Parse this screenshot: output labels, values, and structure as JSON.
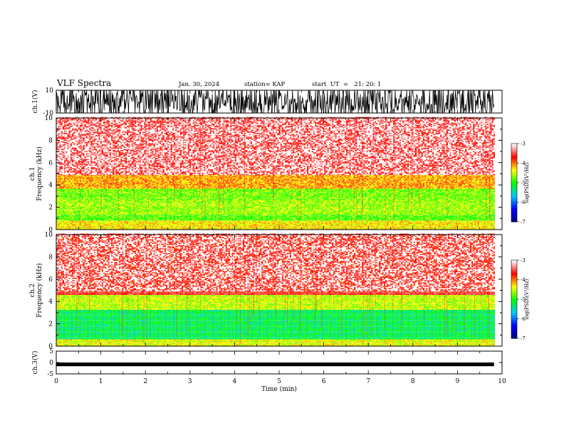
{
  "header": {
    "title": "VLF Spectra",
    "date": "Jan. 30, 2024",
    "station": "station= KAP",
    "start": "start  UT  =   21: 20: 1"
  },
  "chart_data": [
    {
      "type": "line",
      "panel": "ch1-waveform",
      "ylabel": "ch.1(V)",
      "ylim": [
        -10,
        10
      ],
      "yticks": [
        "10",
        "-10"
      ],
      "description_values": "saturated noisy waveform oscillating between about -10 and 10 V"
    },
    {
      "type": "heatmap",
      "panel": "ch1-spectrogram",
      "ylabel_top": "ch.1",
      "ylabel": "Frequency  (kHz)",
      "ylim": [
        0,
        10
      ],
      "yticks": [
        "0",
        "2",
        "4",
        "6",
        "8",
        "10"
      ],
      "colorbar": {
        "label": "log(PSD)(V²/Hz)",
        "ticks": [
          "-3",
          "-4",
          "-5",
          "-6",
          "-7"
        ],
        "range": [
          -7,
          -3
        ]
      },
      "bands": [
        {
          "from_khz": 0.0,
          "to_khz": 0.8,
          "level": -4.3
        },
        {
          "from_khz": 0.8,
          "to_khz": 1.3,
          "level": -4.8
        },
        {
          "from_khz": 1.3,
          "to_khz": 2.6,
          "level": -4.6
        },
        {
          "from_khz": 2.6,
          "to_khz": 3.6,
          "level": -4.7
        },
        {
          "from_khz": 3.6,
          "to_khz": 4.8,
          "level": -4.1
        },
        {
          "from_khz": 4.8,
          "to_khz": 10.0,
          "level": -3.5
        }
      ]
    },
    {
      "type": "heatmap",
      "panel": "ch2-spectrogram",
      "ylabel_top": "ch.2",
      "ylabel": "Frequency  (kHz)",
      "ylim": [
        0,
        10
      ],
      "yticks": [
        "0",
        "2",
        "4",
        "6",
        "8",
        "10"
      ],
      "colorbar": {
        "label": "log(PSD)(V²/Hz)",
        "ticks": [
          "-3",
          "-4",
          "-5",
          "-6",
          "-7"
        ],
        "range": [
          -7,
          -3
        ]
      },
      "bands": [
        {
          "from_khz": 0.0,
          "to_khz": 0.6,
          "level": -4.4
        },
        {
          "from_khz": 0.6,
          "to_khz": 3.2,
          "level": -5.2
        },
        {
          "from_khz": 3.2,
          "to_khz": 4.5,
          "level": -4.5
        },
        {
          "from_khz": 4.5,
          "to_khz": 10.0,
          "level": -3.6
        }
      ]
    },
    {
      "type": "line",
      "panel": "ch3-waveform",
      "ylabel": "ch.3(V)",
      "ylim": [
        -5,
        5
      ],
      "yticks": [
        "5",
        "0",
        "-5"
      ],
      "level_band": [
        -1.0,
        0.0
      ],
      "xlabel": "Time  (min)",
      "xlim": [
        0,
        10
      ],
      "xticks": [
        "0",
        "1",
        "2",
        "3",
        "4",
        "5",
        "6",
        "7",
        "8",
        "9",
        "10"
      ],
      "data_end_min": 9.82
    }
  ],
  "colors": {
    "scale": [
      "#000080",
      "#0000ff",
      "#00c8ff",
      "#00ff00",
      "#ffff00",
      "#ff0000",
      "#ffffff"
    ]
  }
}
